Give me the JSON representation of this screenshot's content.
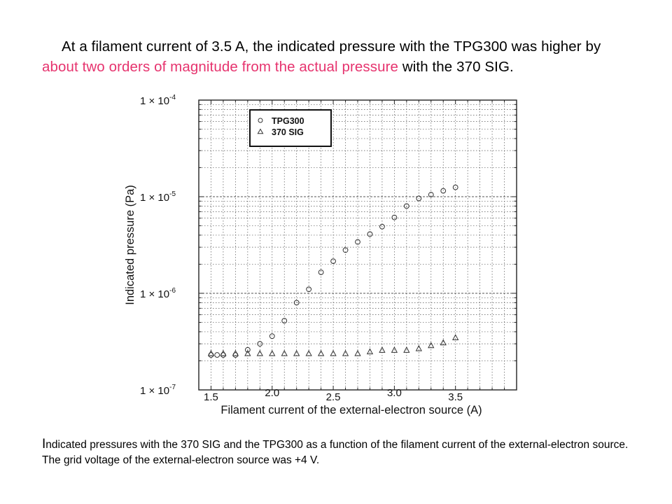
{
  "headline": {
    "part1": "At a filament current of 3.5 A, the indicated pressure with the TPG300 was higher by ",
    "highlight": "about two orders of magnitude from the actual pressure",
    "part2": " with the 370 SIG.",
    "highlight_color": "#e6336e"
  },
  "caption": {
    "first_letter": "I",
    "rest": "ndicated pressures with the 370 SIG and the TPG300  as a function of the filament current of the external-electron source. The grid voltage of the external-electron source was +4 V."
  },
  "chart_data": {
    "type": "scatter",
    "xlabel": "Filament current of the external-electron source (A)",
    "ylabel": "Indicated pressure (Pa)",
    "xlim": [
      1.4,
      4.0
    ],
    "ylim": [
      1e-07,
      0.0001
    ],
    "y_scale": "log",
    "grid": true,
    "legend_position": "top-left",
    "x_ticks": [
      {
        "value": 1.5,
        "label": "1.5"
      },
      {
        "value": 2.0,
        "label": "2.0"
      },
      {
        "value": 2.5,
        "label": "2.5"
      },
      {
        "value": 3.0,
        "label": "3.0"
      },
      {
        "value": 3.5,
        "label": "3.5"
      }
    ],
    "y_ticks": [
      {
        "value": 1e-07,
        "mantissa": "1 × 10",
        "exponent": "-7"
      },
      {
        "value": 1e-06,
        "mantissa": "1 × 10",
        "exponent": "-6"
      },
      {
        "value": 1e-05,
        "mantissa": "1 × 10",
        "exponent": "-5"
      },
      {
        "value": 0.0001,
        "mantissa": "1 × 10",
        "exponent": "-4"
      }
    ],
    "series": [
      {
        "name": "TPG300",
        "marker": "circle",
        "x": [
          1.5,
          1.55,
          1.6,
          1.7,
          1.8,
          1.9,
          2.0,
          2.1,
          2.2,
          2.3,
          2.4,
          2.5,
          2.6,
          2.7,
          2.8,
          2.9,
          3.0,
          3.1,
          3.2,
          3.3,
          3.4,
          3.5
        ],
        "y": [
          2.3e-07,
          2.3e-07,
          2.3e-07,
          2.3e-07,
          2.6e-07,
          3e-07,
          3.6e-07,
          5.2e-07,
          8e-07,
          1.1e-06,
          1.65e-06,
          2.15e-06,
          2.8e-06,
          3.4e-06,
          4.1e-06,
          4.9e-06,
          6.1e-06,
          8e-06,
          9.6e-06,
          1.05e-05,
          1.15e-05,
          1.25e-05
        ]
      },
      {
        "name": "370 SIG",
        "marker": "triangle",
        "x": [
          1.5,
          1.6,
          1.7,
          1.8,
          1.9,
          2.0,
          2.1,
          2.2,
          2.3,
          2.4,
          2.5,
          2.6,
          2.7,
          2.8,
          2.9,
          3.0,
          3.1,
          3.2,
          3.3,
          3.4,
          3.5
        ],
        "y": [
          2.4e-07,
          2.4e-07,
          2.4e-07,
          2.4e-07,
          2.4e-07,
          2.4e-07,
          2.4e-07,
          2.4e-07,
          2.4e-07,
          2.4e-07,
          2.4e-07,
          2.4e-07,
          2.4e-07,
          2.5e-07,
          2.6e-07,
          2.6e-07,
          2.6e-07,
          2.7e-07,
          2.9e-07,
          3.1e-07,
          3.5e-07
        ]
      }
    ]
  }
}
